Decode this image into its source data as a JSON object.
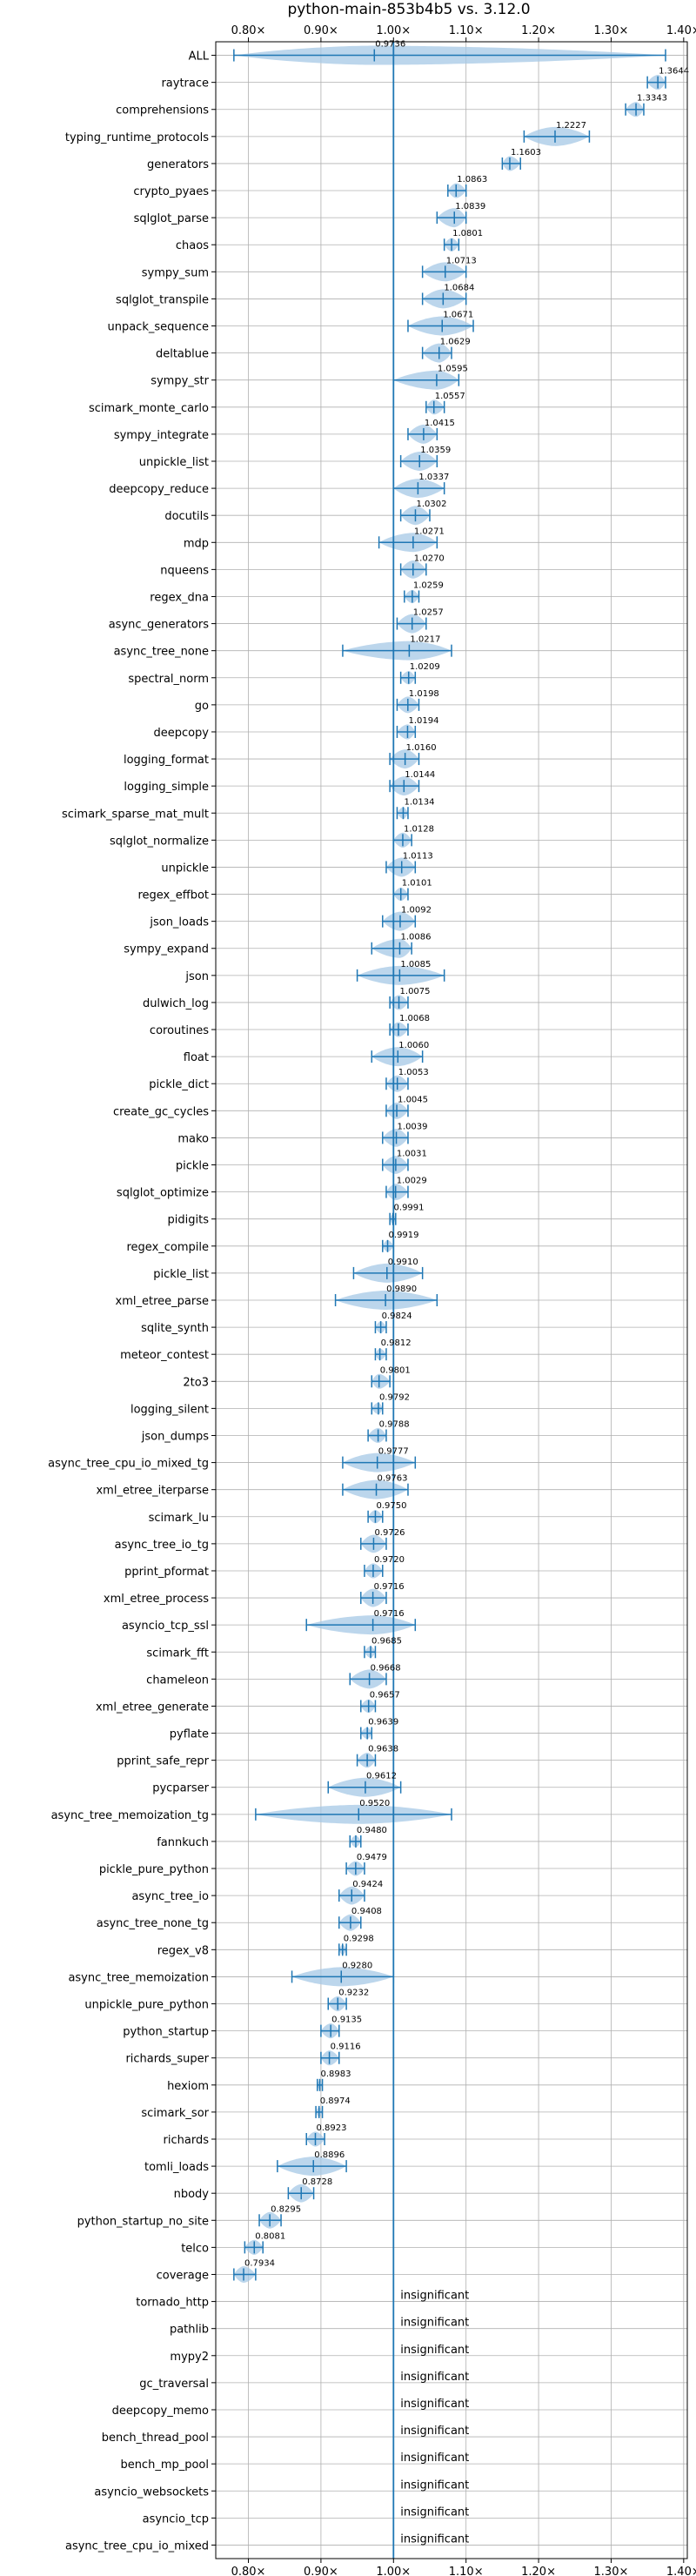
{
  "chart_data": {
    "type": "violin",
    "title": "python-main-853b4b5 vs. 3.12.0",
    "xlabel": "",
    "ylabel": "",
    "xlim": [
      0.755,
      1.405
    ],
    "x_ticks": [
      0.8,
      0.9,
      1.0,
      1.1,
      1.2,
      1.3,
      1.4
    ],
    "x_tick_labels": [
      "0.80×",
      "0.90×",
      "1.00×",
      "1.10×",
      "1.20×",
      "1.30×",
      "1.40×"
    ],
    "grid": true,
    "reference_line": 1.0,
    "colors": {
      "accent": "#1f77b4",
      "violin": "#a6c8e6",
      "grid": "#b0b0b0"
    },
    "insignificant_text": "insignificant",
    "benchmarks": [
      {
        "name": "ALL",
        "value": 0.9736,
        "min": 0.78,
        "max": 1.375
      },
      {
        "name": "raytrace",
        "value": 1.3644,
        "min": 1.35,
        "max": 1.375
      },
      {
        "name": "comprehensions",
        "value": 1.3343,
        "min": 1.32,
        "max": 1.345
      },
      {
        "name": "typing_runtime_protocols",
        "value": 1.2227,
        "min": 1.18,
        "max": 1.27
      },
      {
        "name": "generators",
        "value": 1.1603,
        "min": 1.15,
        "max": 1.175
      },
      {
        "name": "crypto_pyaes",
        "value": 1.0863,
        "min": 1.075,
        "max": 1.1
      },
      {
        "name": "sqlglot_parse",
        "value": 1.0839,
        "min": 1.06,
        "max": 1.1
      },
      {
        "name": "chaos",
        "value": 1.0801,
        "min": 1.07,
        "max": 1.09
      },
      {
        "name": "sympy_sum",
        "value": 1.0713,
        "min": 1.04,
        "max": 1.1
      },
      {
        "name": "sqlglot_transpile",
        "value": 1.0684,
        "min": 1.04,
        "max": 1.1
      },
      {
        "name": "unpack_sequence",
        "value": 1.0671,
        "min": 1.02,
        "max": 1.11
      },
      {
        "name": "deltablue",
        "value": 1.0629,
        "min": 1.04,
        "max": 1.08
      },
      {
        "name": "sympy_str",
        "value": 1.0595,
        "min": 1.0,
        "max": 1.09
      },
      {
        "name": "scimark_monte_carlo",
        "value": 1.0557,
        "min": 1.045,
        "max": 1.07
      },
      {
        "name": "sympy_integrate",
        "value": 1.0415,
        "min": 1.02,
        "max": 1.06
      },
      {
        "name": "unpickle_list",
        "value": 1.0359,
        "min": 1.01,
        "max": 1.06
      },
      {
        "name": "deepcopy_reduce",
        "value": 1.0337,
        "min": 1.0,
        "max": 1.07
      },
      {
        "name": "docutils",
        "value": 1.0302,
        "min": 1.01,
        "max": 1.05
      },
      {
        "name": "mdp",
        "value": 1.0271,
        "min": 0.98,
        "max": 1.06
      },
      {
        "name": "nqueens",
        "value": 1.027,
        "min": 1.01,
        "max": 1.045
      },
      {
        "name": "regex_dna",
        "value": 1.0259,
        "min": 1.015,
        "max": 1.035
      },
      {
        "name": "async_generators",
        "value": 1.0257,
        "min": 1.005,
        "max": 1.045
      },
      {
        "name": "async_tree_none",
        "value": 1.0217,
        "min": 0.93,
        "max": 1.08
      },
      {
        "name": "spectral_norm",
        "value": 1.0209,
        "min": 1.01,
        "max": 1.03
      },
      {
        "name": "go",
        "value": 1.0198,
        "min": 1.005,
        "max": 1.035
      },
      {
        "name": "deepcopy",
        "value": 1.0194,
        "min": 1.005,
        "max": 1.03
      },
      {
        "name": "logging_format",
        "value": 1.016,
        "min": 0.995,
        "max": 1.035
      },
      {
        "name": "logging_simple",
        "value": 1.0144,
        "min": 0.995,
        "max": 1.035
      },
      {
        "name": "scimark_sparse_mat_mult",
        "value": 1.0134,
        "min": 1.005,
        "max": 1.02
      },
      {
        "name": "sqlglot_normalize",
        "value": 1.0128,
        "min": 1.0,
        "max": 1.025
      },
      {
        "name": "unpickle",
        "value": 1.0113,
        "min": 0.99,
        "max": 1.03
      },
      {
        "name": "regex_effbot",
        "value": 1.0101,
        "min": 1.0,
        "max": 1.02
      },
      {
        "name": "json_loads",
        "value": 1.0092,
        "min": 0.985,
        "max": 1.03
      },
      {
        "name": "sympy_expand",
        "value": 1.0086,
        "min": 0.97,
        "max": 1.025
      },
      {
        "name": "json",
        "value": 1.0085,
        "min": 0.95,
        "max": 1.07
      },
      {
        "name": "dulwich_log",
        "value": 1.0075,
        "min": 0.995,
        "max": 1.02
      },
      {
        "name": "coroutines",
        "value": 1.0068,
        "min": 0.995,
        "max": 1.02
      },
      {
        "name": "float",
        "value": 1.006,
        "min": 0.97,
        "max": 1.04
      },
      {
        "name": "pickle_dict",
        "value": 1.0053,
        "min": 0.99,
        "max": 1.02
      },
      {
        "name": "create_gc_cycles",
        "value": 1.0045,
        "min": 0.99,
        "max": 1.02
      },
      {
        "name": "mako",
        "value": 1.0039,
        "min": 0.985,
        "max": 1.02
      },
      {
        "name": "pickle",
        "value": 1.0031,
        "min": 0.985,
        "max": 1.02
      },
      {
        "name": "sqlglot_optimize",
        "value": 1.0029,
        "min": 0.99,
        "max": 1.02
      },
      {
        "name": "pidigits",
        "value": 0.9991,
        "min": 0.995,
        "max": 1.003
      },
      {
        "name": "regex_compile",
        "value": 0.9919,
        "min": 0.985,
        "max": 1.0
      },
      {
        "name": "pickle_list",
        "value": 0.991,
        "min": 0.945,
        "max": 1.04
      },
      {
        "name": "xml_etree_parse",
        "value": 0.989,
        "min": 0.92,
        "max": 1.06
      },
      {
        "name": "sqlite_synth",
        "value": 0.9824,
        "min": 0.975,
        "max": 0.99
      },
      {
        "name": "meteor_contest",
        "value": 0.9812,
        "min": 0.975,
        "max": 0.99
      },
      {
        "name": "2to3",
        "value": 0.9801,
        "min": 0.97,
        "max": 0.995
      },
      {
        "name": "logging_silent",
        "value": 0.9792,
        "min": 0.97,
        "max": 0.985
      },
      {
        "name": "json_dumps",
        "value": 0.9788,
        "min": 0.965,
        "max": 0.99
      },
      {
        "name": "async_tree_cpu_io_mixed_tg",
        "value": 0.9777,
        "min": 0.93,
        "max": 1.03
      },
      {
        "name": "xml_etree_iterparse",
        "value": 0.9763,
        "min": 0.93,
        "max": 1.02
      },
      {
        "name": "scimark_lu",
        "value": 0.975,
        "min": 0.965,
        "max": 0.985
      },
      {
        "name": "async_tree_io_tg",
        "value": 0.9726,
        "min": 0.955,
        "max": 0.99
      },
      {
        "name": "pprint_pformat",
        "value": 0.972,
        "min": 0.96,
        "max": 0.985
      },
      {
        "name": "xml_etree_process",
        "value": 0.9716,
        "min": 0.955,
        "max": 0.99
      },
      {
        "name": "asyncio_tcp_ssl",
        "value": 0.9716,
        "min": 0.88,
        "max": 1.03
      },
      {
        "name": "scimark_fft",
        "value": 0.9685,
        "min": 0.96,
        "max": 0.975
      },
      {
        "name": "chameleon",
        "value": 0.9668,
        "min": 0.94,
        "max": 0.99
      },
      {
        "name": "xml_etree_generate",
        "value": 0.9657,
        "min": 0.955,
        "max": 0.975
      },
      {
        "name": "pyflate",
        "value": 0.9639,
        "min": 0.955,
        "max": 0.97
      },
      {
        "name": "pprint_safe_repr",
        "value": 0.9638,
        "min": 0.95,
        "max": 0.975
      },
      {
        "name": "pycparser",
        "value": 0.9612,
        "min": 0.91,
        "max": 1.01
      },
      {
        "name": "async_tree_memoization_tg",
        "value": 0.952,
        "min": 0.81,
        "max": 1.08
      },
      {
        "name": "fannkuch",
        "value": 0.948,
        "min": 0.94,
        "max": 0.955
      },
      {
        "name": "pickle_pure_python",
        "value": 0.9479,
        "min": 0.935,
        "max": 0.96
      },
      {
        "name": "async_tree_io",
        "value": 0.9424,
        "min": 0.925,
        "max": 0.96
      },
      {
        "name": "async_tree_none_tg",
        "value": 0.9408,
        "min": 0.925,
        "max": 0.955
      },
      {
        "name": "regex_v8",
        "value": 0.9298,
        "min": 0.925,
        "max": 0.935
      },
      {
        "name": "async_tree_memoization",
        "value": 0.928,
        "min": 0.86,
        "max": 1.0
      },
      {
        "name": "unpickle_pure_python",
        "value": 0.9232,
        "min": 0.91,
        "max": 0.935
      },
      {
        "name": "python_startup",
        "value": 0.9135,
        "min": 0.9,
        "max": 0.925
      },
      {
        "name": "richards_super",
        "value": 0.9116,
        "min": 0.9,
        "max": 0.925
      },
      {
        "name": "hexiom",
        "value": 0.8983,
        "min": 0.895,
        "max": 0.902
      },
      {
        "name": "scimark_sor",
        "value": 0.8974,
        "min": 0.893,
        "max": 0.902
      },
      {
        "name": "richards",
        "value": 0.8923,
        "min": 0.88,
        "max": 0.905
      },
      {
        "name": "tomli_loads",
        "value": 0.8896,
        "min": 0.84,
        "max": 0.935
      },
      {
        "name": "nbody",
        "value": 0.8728,
        "min": 0.855,
        "max": 0.89
      },
      {
        "name": "python_startup_no_site",
        "value": 0.8295,
        "min": 0.815,
        "max": 0.845
      },
      {
        "name": "telco",
        "value": 0.8081,
        "min": 0.795,
        "max": 0.82
      },
      {
        "name": "coverage",
        "value": 0.7934,
        "min": 0.78,
        "max": 0.81
      },
      {
        "name": "tornado_http",
        "value": null,
        "min": null,
        "max": null
      },
      {
        "name": "pathlib",
        "value": null,
        "min": null,
        "max": null
      },
      {
        "name": "mypy2",
        "value": null,
        "min": null,
        "max": null
      },
      {
        "name": "gc_traversal",
        "value": null,
        "min": null,
        "max": null
      },
      {
        "name": "deepcopy_memo",
        "value": null,
        "min": null,
        "max": null
      },
      {
        "name": "bench_thread_pool",
        "value": null,
        "min": null,
        "max": null
      },
      {
        "name": "bench_mp_pool",
        "value": null,
        "min": null,
        "max": null
      },
      {
        "name": "asyncio_websockets",
        "value": null,
        "min": null,
        "max": null
      },
      {
        "name": "asyncio_tcp",
        "value": null,
        "min": null,
        "max": null
      },
      {
        "name": "async_tree_cpu_io_mixed",
        "value": null,
        "min": null,
        "max": null
      }
    ]
  }
}
